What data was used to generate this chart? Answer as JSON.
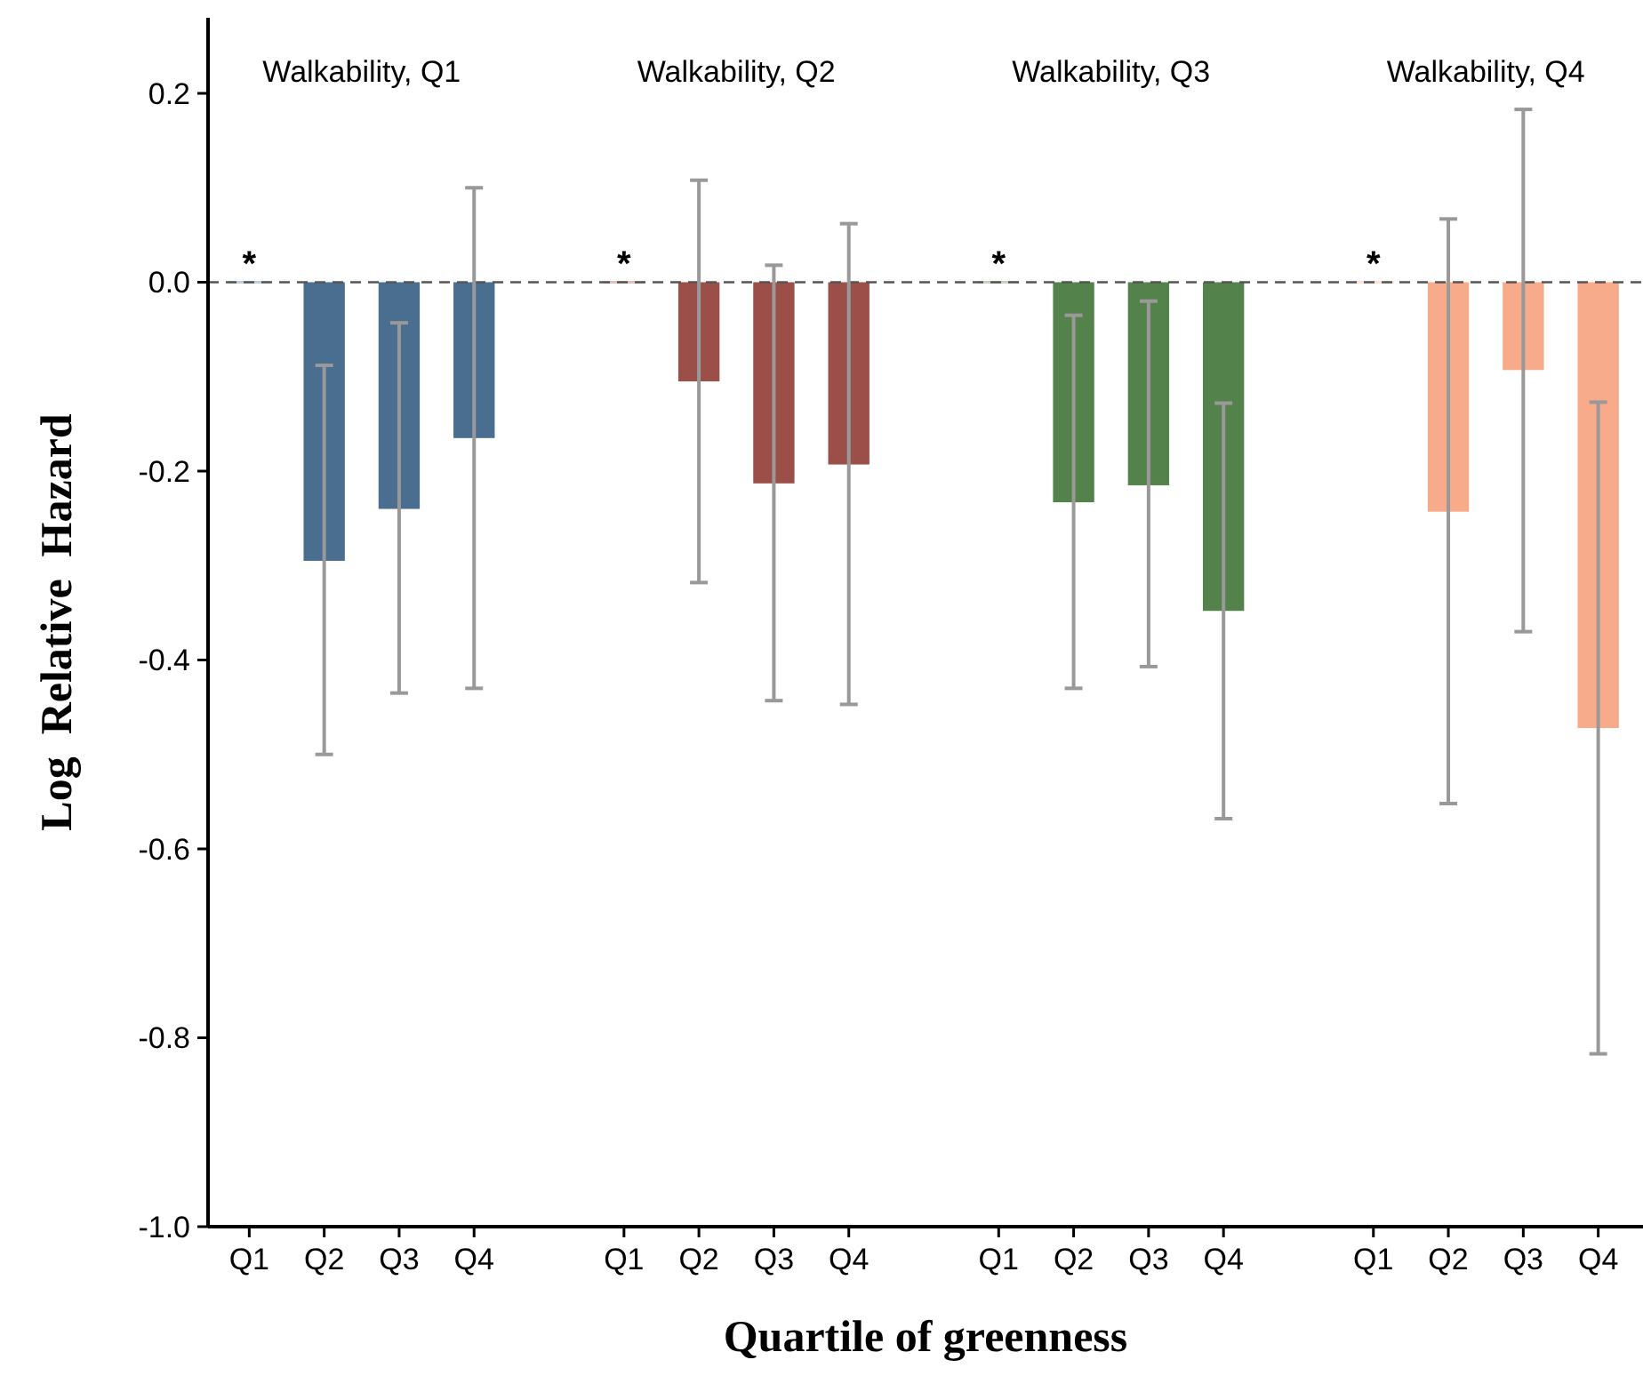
{
  "chart_data": {
    "type": "bar",
    "xlabel": "Quartile of greenness",
    "ylabel": "Log  Relative  Hazard",
    "categories": [
      "Q1",
      "Q2",
      "Q3",
      "Q4",
      null,
      "Q1",
      "Q2",
      "Q3",
      "Q4",
      null,
      "Q1",
      "Q2",
      "Q3",
      "Q4",
      null,
      "Q1",
      "Q2",
      "Q3",
      "Q4"
    ],
    "series": [
      {
        "color": "#4a6e8f",
        "values": [
          0,
          -0.295,
          -0.24,
          -0.165,
          null,
          null,
          null,
          null,
          null,
          null,
          null,
          null,
          null,
          null,
          null,
          null,
          null,
          null,
          null
        ],
        "errors": [
          null,
          [
            -0.5,
            -0.088
          ],
          [
            -0.435,
            -0.043
          ],
          [
            -0.43,
            0.1
          ],
          null,
          null,
          null,
          null,
          null,
          null,
          null,
          null,
          null,
          null,
          null,
          null,
          null,
          null,
          null
        ],
        "value_labels": [
          "*",
          null,
          null,
          null,
          null,
          null,
          null,
          null,
          null,
          null,
          null,
          null,
          null,
          null,
          null,
          null,
          null,
          null,
          null
        ]
      },
      {
        "color": "#9c4e48",
        "values": [
          null,
          null,
          null,
          null,
          null,
          0,
          -0.105,
          -0.213,
          -0.193,
          null,
          null,
          null,
          null,
          null,
          null,
          null,
          null,
          null,
          null
        ],
        "errors": [
          null,
          null,
          null,
          null,
          null,
          null,
          [
            -0.318,
            0.108
          ],
          [
            -0.443,
            0.018
          ],
          [
            -0.447,
            0.062
          ],
          null,
          null,
          null,
          null,
          null,
          null,
          null,
          null,
          null,
          null
        ],
        "value_labels": [
          null,
          null,
          null,
          null,
          null,
          "*",
          null,
          null,
          null,
          null,
          null,
          null,
          null,
          null,
          null,
          null,
          null,
          null,
          null
        ]
      },
      {
        "color": "#53824a",
        "values": [
          null,
          null,
          null,
          null,
          null,
          null,
          null,
          null,
          null,
          null,
          0,
          -0.233,
          -0.215,
          -0.348,
          null,
          null,
          null,
          null,
          null
        ],
        "errors": [
          null,
          null,
          null,
          null,
          null,
          null,
          null,
          null,
          null,
          null,
          null,
          [
            -0.43,
            -0.035
          ],
          [
            -0.407,
            -0.02
          ],
          [
            -0.568,
            -0.128
          ],
          null,
          null,
          null,
          null,
          null
        ],
        "value_labels": [
          null,
          null,
          null,
          null,
          null,
          null,
          null,
          null,
          null,
          null,
          "*",
          null,
          null,
          null,
          null,
          null,
          null,
          null,
          null
        ]
      },
      {
        "color": "#f8ab8a",
        "values": [
          null,
          null,
          null,
          null,
          null,
          null,
          null,
          null,
          null,
          null,
          null,
          null,
          null,
          null,
          null,
          0,
          -0.243,
          -0.093,
          -0.472
        ],
        "errors": [
          null,
          null,
          null,
          null,
          null,
          null,
          null,
          null,
          null,
          null,
          null,
          null,
          null,
          null,
          null,
          null,
          [
            -0.552,
            0.067
          ],
          [
            -0.37,
            0.183
          ],
          [
            -0.817,
            -0.127
          ]
        ],
        "value_labels": [
          null,
          null,
          null,
          null,
          null,
          null,
          null,
          null,
          null,
          null,
          null,
          null,
          null,
          null,
          null,
          "*",
          null,
          null,
          null
        ]
      }
    ],
    "ylim": [
      -1.0,
      0.28
    ],
    "yticks": [
      {
        "value": -1,
        "label": "-1.0"
      },
      {
        "value": -0.8,
        "label": "-0.8"
      },
      {
        "value": -0.6,
        "label": "-0.6"
      },
      {
        "value": -0.4,
        "label": "-0.4"
      },
      {
        "value": -0.2,
        "label": "-0.2"
      },
      {
        "value": 0,
        "label": "0.0"
      },
      {
        "value": 0.2,
        "label": "0.2"
      }
    ],
    "ref_lines": [
      {
        "axis": "y",
        "value": 0,
        "color": "#555555",
        "line_style": "dashed"
      }
    ],
    "annotations": [
      "Walkability, Q1",
      "Walkability, Q2",
      "Walkability, Q3",
      "Walkability, Q4"
    ],
    "grid": false
  }
}
